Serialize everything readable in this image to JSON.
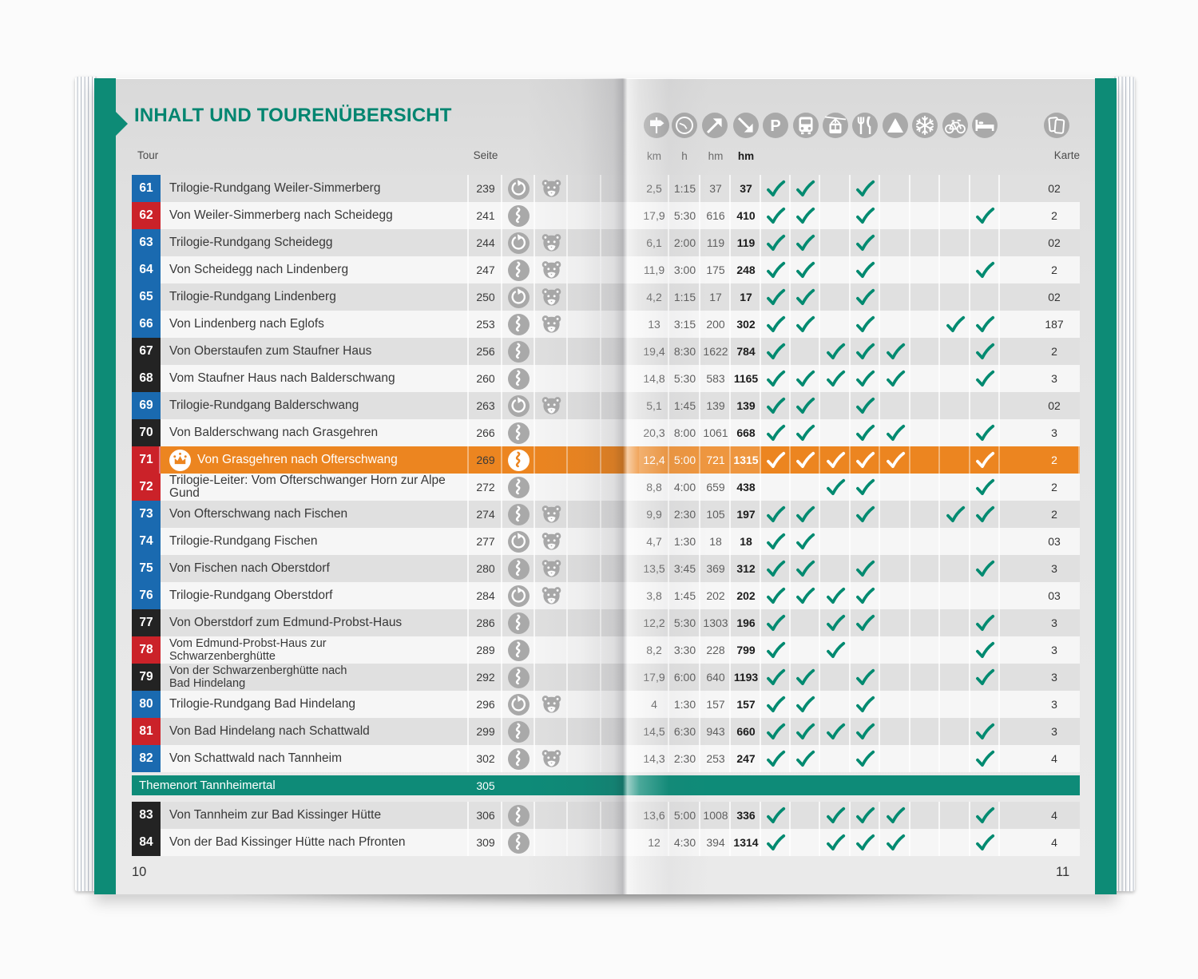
{
  "book": {
    "title": "INHALT UND TOURENÜBERSICHT",
    "left_page_number": "10",
    "right_page_number": "11",
    "column_headers": {
      "tour": "Tour",
      "seite": "Seite",
      "karte": "Karte"
    },
    "unit_labels": [
      "km",
      "h",
      "hm",
      "hm"
    ],
    "header_icons": [
      "signpost",
      "clock",
      "ascent-arrow",
      "descent-arrow",
      "parking",
      "bus",
      "cablecar",
      "restaurant",
      "peak",
      "snowflake",
      "bicycle",
      "bed",
      "map-cards"
    ],
    "amenity_columns": [
      "parking",
      "bus",
      "cablecar",
      "restaurant",
      "peak",
      "snowflake",
      "bicycle",
      "bed"
    ],
    "colors": {
      "accent_teal": "#0d8b76",
      "title_teal": "#028570",
      "check_teal": "#008a70",
      "difficulty_blue": "#1a6ab0",
      "difficulty_red": "#cb2229",
      "difficulty_black": "#232323",
      "highlight_orange": "#ec8520",
      "icon_gray": "#a9a9a9"
    },
    "theme_row": {
      "label": "Themenort Tannheimertal",
      "page": "305"
    },
    "tours": [
      {
        "number": "61",
        "difficulty": "blue",
        "name": "Trilogie-Rundgang Weiler-Simmerberg",
        "page": "239",
        "route": "loop",
        "bear": true,
        "crown": false,
        "highlight": false,
        "km": "2,5",
        "time": "1:15",
        "ascent": "37",
        "descent": "37",
        "amenities": [
          "parking",
          "bus",
          "restaurant"
        ],
        "karte": "02"
      },
      {
        "number": "62",
        "difficulty": "red",
        "name": "Von Weiler-Simmerberg nach Scheidegg",
        "page": "241",
        "route": "linear",
        "bear": false,
        "crown": false,
        "highlight": false,
        "km": "17,9",
        "time": "5:30",
        "ascent": "616",
        "descent": "410",
        "amenities": [
          "parking",
          "bus",
          "restaurant",
          "bed"
        ],
        "karte": "2"
      },
      {
        "number": "63",
        "difficulty": "blue",
        "name": "Trilogie-Rundgang Scheidegg",
        "page": "244",
        "route": "loop",
        "bear": true,
        "crown": false,
        "highlight": false,
        "km": "6,1",
        "time": "2:00",
        "ascent": "119",
        "descent": "119",
        "amenities": [
          "parking",
          "bus",
          "restaurant"
        ],
        "karte": "02"
      },
      {
        "number": "64",
        "difficulty": "blue",
        "name": "Von Scheidegg nach Lindenberg",
        "page": "247",
        "route": "linear",
        "bear": true,
        "crown": false,
        "highlight": false,
        "km": "11,9",
        "time": "3:00",
        "ascent": "175",
        "descent": "248",
        "amenities": [
          "parking",
          "bus",
          "restaurant",
          "bed"
        ],
        "karte": "2"
      },
      {
        "number": "65",
        "difficulty": "blue",
        "name": "Trilogie-Rundgang Lindenberg",
        "page": "250",
        "route": "loop",
        "bear": true,
        "crown": false,
        "highlight": false,
        "km": "4,2",
        "time": "1:15",
        "ascent": "17",
        "descent": "17",
        "amenities": [
          "parking",
          "bus",
          "restaurant"
        ],
        "karte": "02"
      },
      {
        "number": "66",
        "difficulty": "blue",
        "name": "Von Lindenberg nach Eglofs",
        "page": "253",
        "route": "linear",
        "bear": true,
        "crown": false,
        "highlight": false,
        "km": "13",
        "time": "3:15",
        "ascent": "200",
        "descent": "302",
        "amenities": [
          "parking",
          "bus",
          "restaurant",
          "bicycle",
          "bed"
        ],
        "karte": "187"
      },
      {
        "number": "67",
        "difficulty": "black",
        "name": "Von Oberstaufen zum Staufner Haus",
        "page": "256",
        "route": "linear",
        "bear": false,
        "crown": false,
        "highlight": false,
        "km": "19,4",
        "time": "8:30",
        "ascent": "1622",
        "descent": "784",
        "amenities": [
          "parking",
          "cablecar",
          "restaurant",
          "peak",
          "bed"
        ],
        "karte": "2"
      },
      {
        "number": "68",
        "difficulty": "black",
        "name": "Vom Staufner Haus nach Balderschwang",
        "page": "260",
        "route": "linear",
        "bear": false,
        "crown": false,
        "highlight": false,
        "km": "14,8",
        "time": "5:30",
        "ascent": "583",
        "descent": "1165",
        "amenities": [
          "parking",
          "bus",
          "cablecar",
          "restaurant",
          "peak",
          "bed"
        ],
        "karte": "3"
      },
      {
        "number": "69",
        "difficulty": "blue",
        "name": "Trilogie-Rundgang Balderschwang",
        "page": "263",
        "route": "loop",
        "bear": true,
        "crown": false,
        "highlight": false,
        "km": "5,1",
        "time": "1:45",
        "ascent": "139",
        "descent": "139",
        "amenities": [
          "parking",
          "bus",
          "restaurant"
        ],
        "karte": "02"
      },
      {
        "number": "70",
        "difficulty": "black",
        "name": "Von Balderschwang nach Grasgehren",
        "page": "266",
        "route": "linear",
        "bear": false,
        "crown": false,
        "highlight": false,
        "km": "20,3",
        "time": "8:00",
        "ascent": "1061",
        "descent": "668",
        "amenities": [
          "parking",
          "bus",
          "restaurant",
          "peak",
          "bed"
        ],
        "karte": "3"
      },
      {
        "number": "71",
        "difficulty": "red",
        "name": "Von Grasgehren nach Ofterschwang",
        "page": "269",
        "route": "linear",
        "bear": false,
        "crown": true,
        "highlight": true,
        "km": "12,4",
        "time": "5:00",
        "ascent": "721",
        "descent": "1315",
        "amenities": [
          "parking",
          "bus",
          "cablecar",
          "restaurant",
          "peak",
          "bed"
        ],
        "karte": "2"
      },
      {
        "number": "72",
        "difficulty": "red",
        "name": "Trilogie-Leiter: Vom Ofterschwanger Horn zur Alpe Gund",
        "page": "272",
        "route": "linear",
        "bear": false,
        "crown": false,
        "highlight": false,
        "km": "8,8",
        "time": "4:00",
        "ascent": "659",
        "descent": "438",
        "amenities": [
          "cablecar",
          "restaurant",
          "bed"
        ],
        "karte": "2"
      },
      {
        "number": "73",
        "difficulty": "blue",
        "name": "Von Ofterschwang nach Fischen",
        "page": "274",
        "route": "linear",
        "bear": true,
        "crown": false,
        "highlight": false,
        "km": "9,9",
        "time": "2:30",
        "ascent": "105",
        "descent": "197",
        "amenities": [
          "parking",
          "bus",
          "restaurant",
          "bicycle",
          "bed"
        ],
        "karte": "2"
      },
      {
        "number": "74",
        "difficulty": "blue",
        "name": "Trilogie-Rundgang Fischen",
        "page": "277",
        "route": "loop",
        "bear": true,
        "crown": false,
        "highlight": false,
        "km": "4,7",
        "time": "1:30",
        "ascent": "18",
        "descent": "18",
        "amenities": [
          "parking",
          "bus"
        ],
        "karte": "03"
      },
      {
        "number": "75",
        "difficulty": "blue",
        "name": "Von Fischen nach Oberstdorf",
        "page": "280",
        "route": "linear",
        "bear": true,
        "crown": false,
        "highlight": false,
        "km": "13,5",
        "time": "3:45",
        "ascent": "369",
        "descent": "312",
        "amenities": [
          "parking",
          "bus",
          "restaurant",
          "bed"
        ],
        "karte": "3"
      },
      {
        "number": "76",
        "difficulty": "blue",
        "name": "Trilogie-Rundgang Oberstdorf",
        "page": "284",
        "route": "loop",
        "bear": true,
        "crown": false,
        "highlight": false,
        "km": "3,8",
        "time": "1:45",
        "ascent": "202",
        "descent": "202",
        "amenities": [
          "parking",
          "bus",
          "cablecar",
          "restaurant"
        ],
        "karte": "03"
      },
      {
        "number": "77",
        "difficulty": "black",
        "name": "Von Oberstdorf zum Edmund-Probst-Haus",
        "page": "286",
        "route": "linear",
        "bear": false,
        "crown": false,
        "highlight": false,
        "km": "12,2",
        "time": "5:30",
        "ascent": "1303",
        "descent": "196",
        "amenities": [
          "parking",
          "cablecar",
          "restaurant",
          "bed"
        ],
        "karte": "3"
      },
      {
        "number": "78",
        "difficulty": "red",
        "name": "Vom Edmund-Probst-Haus zur\nSchwarzenberghütte",
        "page": "289",
        "route": "linear",
        "bear": false,
        "crown": false,
        "highlight": false,
        "km": "8,2",
        "time": "3:30",
        "ascent": "228",
        "descent": "799",
        "amenities": [
          "parking",
          "cablecar",
          "bed"
        ],
        "karte": "3"
      },
      {
        "number": "79",
        "difficulty": "black",
        "name": "Von der Schwarzenberghütte nach\nBad Hindelang",
        "page": "292",
        "route": "linear",
        "bear": false,
        "crown": false,
        "highlight": false,
        "km": "17,9",
        "time": "6:00",
        "ascent": "640",
        "descent": "1193",
        "amenities": [
          "parking",
          "bus",
          "restaurant",
          "bed"
        ],
        "karte": "3"
      },
      {
        "number": "80",
        "difficulty": "blue",
        "name": "Trilogie-Rundgang Bad Hindelang",
        "page": "296",
        "route": "loop",
        "bear": true,
        "crown": false,
        "highlight": false,
        "km": "4",
        "time": "1:30",
        "ascent": "157",
        "descent": "157",
        "amenities": [
          "parking",
          "bus",
          "restaurant"
        ],
        "karte": "3"
      },
      {
        "number": "81",
        "difficulty": "red",
        "name": "Von Bad Hindelang nach Schattwald",
        "page": "299",
        "route": "linear",
        "bear": false,
        "crown": false,
        "highlight": false,
        "km": "14,5",
        "time": "6:30",
        "ascent": "943",
        "descent": "660",
        "amenities": [
          "parking",
          "bus",
          "cablecar",
          "restaurant",
          "bed"
        ],
        "karte": "3"
      },
      {
        "number": "82",
        "difficulty": "blue",
        "name": "Von Schattwald nach Tannheim",
        "page": "302",
        "route": "linear",
        "bear": true,
        "crown": false,
        "highlight": false,
        "km": "14,3",
        "time": "2:30",
        "ascent": "253",
        "descent": "247",
        "amenities": [
          "parking",
          "bus",
          "restaurant",
          "bed"
        ],
        "karte": "4"
      },
      {
        "number": "83",
        "difficulty": "black",
        "name": "Von Tannheim zur Bad Kissinger Hütte",
        "page": "306",
        "route": "linear",
        "bear": false,
        "crown": false,
        "highlight": false,
        "km": "13,6",
        "time": "5:00",
        "ascent": "1008",
        "descent": "336",
        "amenities": [
          "parking",
          "cablecar",
          "restaurant",
          "peak",
          "bed"
        ],
        "karte": "4"
      },
      {
        "number": "84",
        "difficulty": "black",
        "name": "Von der Bad Kissinger Hütte nach Pfronten",
        "page": "309",
        "route": "linear",
        "bear": false,
        "crown": false,
        "highlight": false,
        "km": "12",
        "time": "4:30",
        "ascent": "394",
        "descent": "1314",
        "amenities": [
          "parking",
          "cablecar",
          "restaurant",
          "peak",
          "bed"
        ],
        "karte": "4"
      }
    ]
  }
}
